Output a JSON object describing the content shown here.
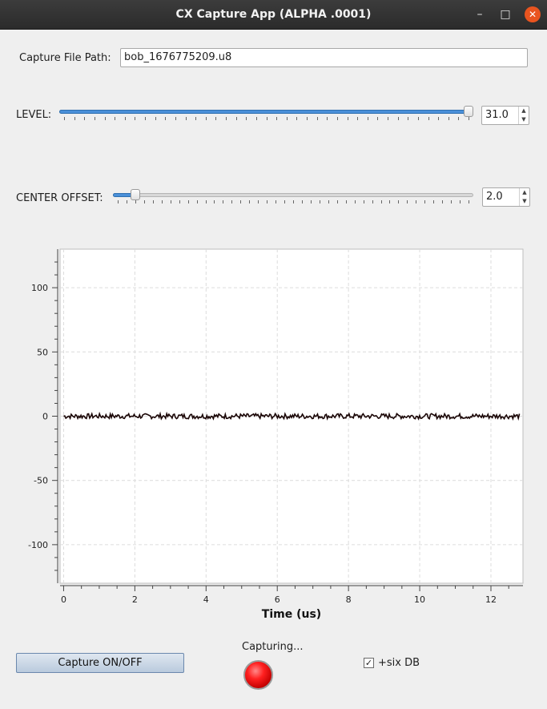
{
  "window": {
    "title": "CX Capture App  (ALPHA .0001)",
    "minimize_glyph": "–",
    "maximize_glyph": "□",
    "close_glyph": "✕"
  },
  "capture_path": {
    "label": "Capture File Path:",
    "value": "bob_1676775209.u8"
  },
  "level": {
    "label": "LEVEL:",
    "value": "31.0",
    "slider_fraction": 1.0,
    "ticks": 40
  },
  "center_offset": {
    "label": "CENTER OFFSET:",
    "value": "2.0",
    "slider_fraction": 0.05,
    "ticks": 40
  },
  "spin_arrows": {
    "up": "▲",
    "down": "▼"
  },
  "status": {
    "capturing_text": "Capturing...",
    "led_color": "#ff0000"
  },
  "capture_button": {
    "label": "Capture ON/OFF"
  },
  "six_db": {
    "label": "+six DB",
    "checked": true,
    "check_glyph": "✓"
  },
  "chart_data": {
    "type": "line",
    "xlabel": "Time (us)",
    "ylabel": "",
    "xlim": [
      -0.1,
      12.9
    ],
    "ylim": [
      -130,
      130
    ],
    "x_ticks": [
      0,
      2,
      4,
      6,
      8,
      10,
      12
    ],
    "y_ticks": [
      100,
      50,
      0,
      -50,
      -100
    ],
    "grid": true,
    "series": [
      {
        "color": "#1a0606",
        "noise_amplitude": 2,
        "x_start": 0,
        "x_end": 12.8,
        "approx_value": 0
      }
    ]
  }
}
